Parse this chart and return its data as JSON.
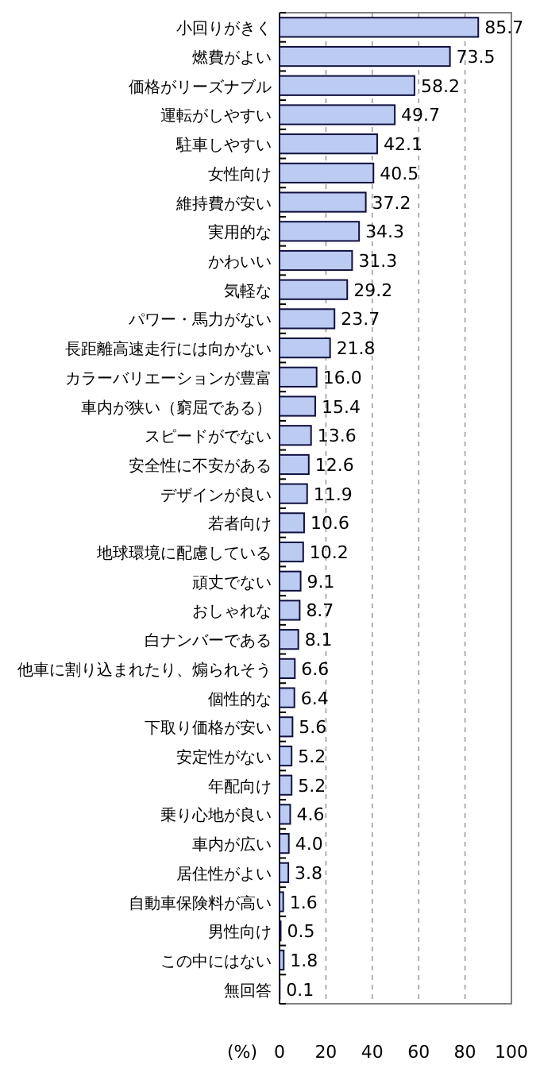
{
  "chart_data": {
    "type": "bar",
    "orientation": "horizontal",
    "xlabel": "(%)",
    "categories": [
      "小回りがきく",
      "燃費がよい",
      "価格がリーズナブル",
      "運転がしやすい",
      "駐車しやすい",
      "女性向け",
      "維持費が安い",
      "実用的な",
      "かわいい",
      "気軽な",
      "パワー・馬力がない",
      "長距離高速走行には向かない",
      "カラーバリエーションが豊富",
      "車内が狭い（窮屈である）",
      "スピードがでない",
      "安全性に不安がある",
      "デザインが良い",
      "若者向け",
      "地球環境に配慮している",
      "頑丈でない",
      "おしゃれな",
      "白ナンバーである",
      "他車に割り込まれたり、煽られそう",
      "個性的な",
      "下取り価格が安い",
      "安定性がない",
      "年配向け",
      "乗り心地が良い",
      "車内が広い",
      "居住性がよい",
      "自動車保険料が高い",
      "男性向け",
      "この中にはない",
      "無回答"
    ],
    "values": [
      85.7,
      73.5,
      58.2,
      49.7,
      42.1,
      40.5,
      37.2,
      34.3,
      31.3,
      29.2,
      23.7,
      21.8,
      16.0,
      15.4,
      13.6,
      12.6,
      11.9,
      10.6,
      10.2,
      9.1,
      8.7,
      8.1,
      6.6,
      6.4,
      5.6,
      5.2,
      5.2,
      4.6,
      4.0,
      3.8,
      1.6,
      0.5,
      1.8,
      0.1
    ],
    "value_labels": [
      "85.7",
      "73.5",
      "58.2",
      "49.7",
      "42.1",
      "40.5",
      "37.2",
      "34.3",
      "31.3",
      "29.2",
      "23.7",
      "21.8",
      "16.0",
      "15.4",
      "13.6",
      "12.6",
      "11.9",
      "10.6",
      "10.2",
      "9.1",
      "8.7",
      "8.1",
      "6.6",
      "6.4",
      "5.6",
      "5.2",
      "5.2",
      "4.6",
      "4.0",
      "3.8",
      "1.6",
      "0.5",
      "1.8",
      "0.1"
    ],
    "color": "#bccbf2",
    "xlim": [
      0,
      100
    ],
    "xticks": [
      0,
      20,
      40,
      60,
      80,
      100
    ],
    "grid": "x"
  }
}
